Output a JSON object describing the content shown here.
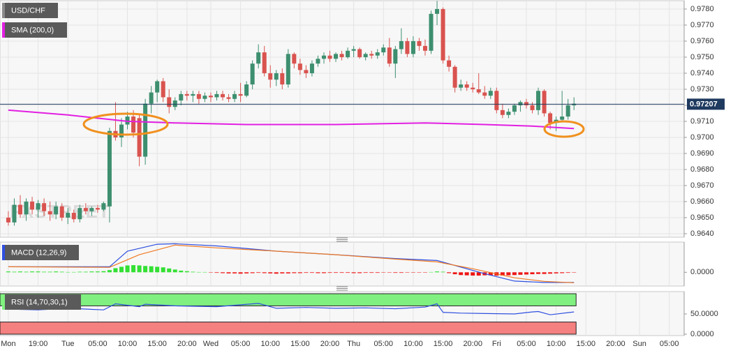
{
  "chart_data": [
    {
      "type": "candlestick",
      "name": "USD/CHF",
      "watermark": "FXSTREET",
      "up_color": "#3d8f6f",
      "down_color": "#d9534f",
      "xlim": [
        -1.4,
        113.5
      ],
      "xticks": [
        {
          "value": 0,
          "label": "Mon"
        },
        {
          "value": 5,
          "label": "19:00"
        },
        {
          "value": 10,
          "label": "Tue"
        },
        {
          "value": 15,
          "label": "05:00"
        },
        {
          "value": 20,
          "label": "10:00"
        },
        {
          "value": 25,
          "label": "15:00"
        },
        {
          "value": 30,
          "label": "20:00"
        },
        {
          "value": 34,
          "label": "Wed"
        },
        {
          "value": 39,
          "label": "05:00"
        },
        {
          "value": 44,
          "label": "10:00"
        },
        {
          "value": 49,
          "label": "15:00"
        },
        {
          "value": 54,
          "label": "20:00"
        },
        {
          "value": 58,
          "label": "Thu"
        },
        {
          "value": 63,
          "label": "05:00"
        },
        {
          "value": 68,
          "label": "10:00"
        },
        {
          "value": 73,
          "label": "15:00"
        },
        {
          "value": 78,
          "label": "20:00"
        },
        {
          "value": 82,
          "label": "Fri"
        },
        {
          "value": 87,
          "label": "05:00"
        },
        {
          "value": 92,
          "label": "10:00"
        },
        {
          "value": 97,
          "label": "15:00"
        },
        {
          "value": 102,
          "label": "20:00"
        },
        {
          "value": 106,
          "label": "Sun"
        },
        {
          "value": 111,
          "label": "05:00"
        }
      ],
      "ylim": [
        0.96378,
        0.97852
      ],
      "yticks": [
        {
          "value": 0.964,
          "label": "0.9640"
        },
        {
          "value": 0.965,
          "label": "0.9650"
        },
        {
          "value": 0.966,
          "label": "0.9660"
        },
        {
          "value": 0.967,
          "label": "0.9670"
        },
        {
          "value": 0.968,
          "label": "0.9680"
        },
        {
          "value": 0.969,
          "label": "0.9690"
        },
        {
          "value": 0.97,
          "label": "0.9700"
        },
        {
          "value": 0.971,
          "label": "0.9710"
        },
        {
          "value": 0.972,
          "label": "0.9720"
        },
        {
          "value": 0.973,
          "label": "0.9730"
        },
        {
          "value": 0.974,
          "label": "0.9740"
        },
        {
          "value": 0.975,
          "label": "0.9750"
        },
        {
          "value": 0.976,
          "label": "0.9760"
        },
        {
          "value": 0.977,
          "label": "0.9770"
        },
        {
          "value": 0.978,
          "label": "0.9780"
        }
      ],
      "grid": true,
      "last_price": 0.97207,
      "last_price_color": "#1f3a5f",
      "x": [
        0,
        1,
        2,
        3,
        4,
        5,
        6,
        7,
        8,
        9,
        10,
        11,
        12,
        13,
        14,
        15,
        16,
        17,
        18,
        19,
        20,
        21,
        22,
        23,
        24,
        25,
        26,
        27,
        28,
        29,
        30,
        31,
        32,
        33,
        34,
        35,
        36,
        37,
        38,
        39,
        40,
        41,
        42,
        43,
        44,
        45,
        46,
        47,
        48,
        49,
        50,
        51,
        52,
        53,
        54,
        55,
        56,
        57,
        58,
        59,
        60,
        61,
        62,
        63,
        64,
        65,
        66,
        67,
        68,
        69,
        70,
        71,
        72,
        73,
        74,
        75,
        76,
        77,
        78,
        79,
        80,
        81,
        82,
        83,
        84,
        85,
        86,
        87,
        88,
        89,
        90,
        91,
        92,
        93,
        94,
        95
      ],
      "candles": [
        [
          0.965,
          0.9654,
          0.9645,
          0.9647
        ],
        [
          0.9647,
          0.9662,
          0.9645,
          0.9658
        ],
        [
          0.9658,
          0.9664,
          0.965,
          0.9652
        ],
        [
          0.9652,
          0.9662,
          0.9648,
          0.966
        ],
        [
          0.966,
          0.9663,
          0.9652,
          0.9655
        ],
        [
          0.9655,
          0.9661,
          0.965,
          0.9659
        ],
        [
          0.9659,
          0.9662,
          0.9651,
          0.9654
        ],
        [
          0.9654,
          0.966,
          0.9648,
          0.9652
        ],
        [
          0.9652,
          0.966,
          0.9649,
          0.9657
        ],
        [
          0.9657,
          0.9659,
          0.9648,
          0.965
        ],
        [
          0.965,
          0.9656,
          0.9646,
          0.9653
        ],
        [
          0.9653,
          0.9655,
          0.9647,
          0.9649
        ],
        [
          0.9649,
          0.9658,
          0.9647,
          0.9656
        ],
        [
          0.9656,
          0.9659,
          0.9652,
          0.9654
        ],
        [
          0.9654,
          0.9657,
          0.9651,
          0.9656
        ],
        [
          0.9656,
          0.9658,
          0.9653,
          0.9655
        ],
        [
          0.9655,
          0.966,
          0.9654,
          0.9659
        ],
        [
          0.9657,
          0.9706,
          0.9647,
          0.9704
        ],
        [
          0.9704,
          0.9722,
          0.9698,
          0.97
        ],
        [
          0.97,
          0.9712,
          0.9694,
          0.9708
        ],
        [
          0.9708,
          0.9716,
          0.9705,
          0.9713
        ],
        [
          0.9713,
          0.9717,
          0.97,
          0.9703
        ],
        [
          0.9712,
          0.9714,
          0.9682,
          0.9688
        ],
        [
          0.9688,
          0.9724,
          0.9683,
          0.9721
        ],
        [
          0.9721,
          0.9732,
          0.9715,
          0.9728
        ],
        [
          0.9728,
          0.9736,
          0.9722,
          0.9735
        ],
        [
          0.9735,
          0.9737,
          0.9722,
          0.9725
        ],
        [
          0.9725,
          0.973,
          0.9715,
          0.9719
        ],
        [
          0.9719,
          0.9725,
          0.9717,
          0.9723
        ],
        [
          0.9723,
          0.9729,
          0.972,
          0.9727
        ],
        [
          0.9727,
          0.9729,
          0.9723,
          0.9726
        ],
        [
          0.9726,
          0.9729,
          0.9722,
          0.9727
        ],
        [
          0.9727,
          0.9729,
          0.9721,
          0.9724
        ],
        [
          0.9724,
          0.9728,
          0.9722,
          0.9726
        ],
        [
          0.9726,
          0.9728,
          0.9722,
          0.9725
        ],
        [
          0.9725,
          0.9729,
          0.9723,
          0.9727
        ],
        [
          0.9727,
          0.9729,
          0.9723,
          0.9725
        ],
        [
          0.9725,
          0.9727,
          0.9722,
          0.9724
        ],
        [
          0.9724,
          0.9729,
          0.9722,
          0.9727
        ],
        [
          0.9727,
          0.9734,
          0.9722,
          0.9726
        ],
        [
          0.9726,
          0.9735,
          0.9725,
          0.9733
        ],
        [
          0.9733,
          0.9748,
          0.973,
          0.9746
        ],
        [
          0.9746,
          0.9758,
          0.9743,
          0.9753
        ],
        [
          0.9753,
          0.9757,
          0.9738,
          0.974
        ],
        [
          0.974,
          0.9745,
          0.9731,
          0.9736
        ],
        [
          0.9736,
          0.9742,
          0.9732,
          0.974
        ],
        [
          0.974,
          0.9743,
          0.973,
          0.9733
        ],
        [
          0.9733,
          0.9755,
          0.9731,
          0.9752
        ],
        [
          0.9752,
          0.9753,
          0.9743,
          0.9746
        ],
        [
          0.9746,
          0.9749,
          0.9739,
          0.9742
        ],
        [
          0.9742,
          0.9745,
          0.9737,
          0.974
        ],
        [
          0.974,
          0.9748,
          0.9738,
          0.9746
        ],
        [
          0.9746,
          0.9751,
          0.9744,
          0.9749
        ],
        [
          0.9749,
          0.9753,
          0.9746,
          0.9751
        ],
        [
          0.9751,
          0.9754,
          0.9747,
          0.9749
        ],
        [
          0.9749,
          0.9753,
          0.9747,
          0.9752
        ],
        [
          0.9752,
          0.9754,
          0.9748,
          0.975
        ],
        [
          0.975,
          0.9756,
          0.9749,
          0.9754
        ],
        [
          0.9754,
          0.9757,
          0.975,
          0.9755
        ],
        [
          0.9755,
          0.9756,
          0.9749,
          0.975
        ],
        [
          0.975,
          0.9753,
          0.9748,
          0.9752
        ],
        [
          0.9752,
          0.9754,
          0.9749,
          0.9751
        ],
        [
          0.9751,
          0.9755,
          0.9749,
          0.9753
        ],
        [
          0.9753,
          0.9758,
          0.9751,
          0.9756
        ],
        [
          0.9756,
          0.9762,
          0.9744,
          0.9746
        ],
        [
          0.9746,
          0.9757,
          0.9737,
          0.9755
        ],
        [
          0.9755,
          0.9768,
          0.9752,
          0.976
        ],
        [
          0.976,
          0.9762,
          0.975,
          0.9752
        ],
        [
          0.9752,
          0.9763,
          0.975,
          0.976
        ],
        [
          0.976,
          0.9762,
          0.9754,
          0.9757
        ],
        [
          0.9757,
          0.9761,
          0.9751,
          0.9754
        ],
        [
          0.9754,
          0.9779,
          0.9752,
          0.9777
        ],
        [
          0.9777,
          0.9785,
          0.977,
          0.978
        ],
        [
          0.978,
          0.9781,
          0.9746,
          0.9748
        ],
        [
          0.9748,
          0.9751,
          0.9741,
          0.9744
        ],
        [
          0.9744,
          0.9745,
          0.9728,
          0.9731
        ],
        [
          0.9731,
          0.9736,
          0.9729,
          0.9733
        ],
        [
          0.9733,
          0.9735,
          0.9729,
          0.9731
        ],
        [
          0.9731,
          0.9734,
          0.9728,
          0.973
        ],
        [
          0.973,
          0.974,
          0.9727,
          0.9728
        ],
        [
          0.9728,
          0.9732,
          0.9724,
          0.9726
        ],
        [
          0.9726,
          0.9731,
          0.9724,
          0.9729
        ],
        [
          0.9729,
          0.9731,
          0.9715,
          0.9717
        ],
        [
          0.9717,
          0.9721,
          0.9712,
          0.9714
        ],
        [
          0.9714,
          0.9718,
          0.9712,
          0.9716
        ],
        [
          0.9716,
          0.9721,
          0.9714,
          0.972
        ],
        [
          0.972,
          0.9723,
          0.9716,
          0.9722
        ],
        [
          0.9722,
          0.9724,
          0.9718,
          0.972
        ],
        [
          0.972,
          0.9722,
          0.9715,
          0.9717
        ],
        [
          0.9717,
          0.9731,
          0.9714,
          0.9729
        ],
        [
          0.9729,
          0.973,
          0.9713,
          0.9715
        ],
        [
          0.9715,
          0.9716,
          0.9705,
          0.9709
        ],
        [
          0.9709,
          0.9713,
          0.9704,
          0.9711
        ],
        [
          0.9711,
          0.9729,
          0.971,
          0.9713
        ],
        [
          0.9713,
          0.9724,
          0.9711,
          0.972
        ],
        [
          0.972,
          0.9725,
          0.9717,
          0.9721
        ]
      ],
      "sma": {
        "name": "SMA (200,0)",
        "color": "#e21fe2",
        "x": [
          0,
          10,
          20,
          28,
          40,
          55,
          70,
          80,
          88,
          95
        ],
        "values": [
          0.9717,
          0.9714,
          0.971,
          0.9709,
          0.9708,
          0.9708,
          0.9709,
          0.9708,
          0.9707,
          0.97055
        ]
      }
    },
    {
      "type": "macd",
      "name": "MACD (12,26,9)",
      "ylim": [
        -0.0005,
        0.0011
      ],
      "yticks": [
        {
          "value": 0,
          "label": "0.0000"
        }
      ],
      "macd": {
        "color": "#2f4fe0",
        "x": [
          0,
          17,
          20,
          25,
          28,
          35,
          45,
          55,
          65,
          72,
          75,
          80,
          85,
          90,
          95
        ],
        "values": [
          0.0002,
          0.0002,
          0.00077,
          0.00102,
          0.00104,
          0.00096,
          0.00077,
          0.00064,
          0.0005,
          0.00043,
          0.00025,
          -5e-05,
          -0.00032,
          -0.00037,
          -0.00037
        ]
      },
      "signal": {
        "color": "#f07a22",
        "x": [
          0,
          17,
          22,
          28,
          35,
          45,
          55,
          65,
          72,
          78,
          85,
          90,
          95
        ],
        "values": [
          0.0002,
          0.00018,
          0.00064,
          0.00099,
          0.00089,
          0.00077,
          0.00064,
          0.00048,
          0.00038,
          0.00013,
          -0.0002,
          -0.00033,
          -0.00038
        ]
      },
      "histogram": {
        "up_color": "#33e033",
        "down_color": "#ee1515",
        "values": [
          3e-05,
          2e-05,
          3e-05,
          2e-05,
          3e-05,
          3e-05,
          2e-05,
          2e-05,
          3e-05,
          2e-05,
          1e-05,
          1e-05,
          2e-05,
          2e-05,
          3e-05,
          3e-05,
          4e-05,
          8e-05,
          0.00015,
          0.0002,
          0.00025,
          0.00026,
          0.00025,
          0.00023,
          0.00022,
          0.0002,
          0.00018,
          0.00014,
          0.0001,
          6e-05,
          4e-05,
          2e-05,
          1e-05,
          1e-05,
          -1e-05,
          -2e-05,
          -3e-05,
          -4e-05,
          -4e-05,
          -5e-05,
          -4e-05,
          -3e-05,
          -2e-05,
          -3e-05,
          -4e-05,
          -5e-05,
          -4e-05,
          -4e-05,
          -3e-05,
          -3e-05,
          -2e-05,
          -2e-05,
          -3e-05,
          -3e-05,
          -2e-05,
          -2e-05,
          -2e-05,
          -2e-05,
          -3e-05,
          -3e-05,
          -2e-05,
          -2e-05,
          -2e-05,
          -1e-05,
          -1e-05,
          -2e-05,
          -2e-05,
          -1e-05,
          -1e-05,
          -1e-05,
          -1e-05,
          1e-05,
          3e-05,
          2e-05,
          -3e-05,
          -7e-05,
          -0.0001,
          -0.00011,
          -0.00012,
          -0.00012,
          -0.00011,
          -0.00011,
          -0.00012,
          -0.00012,
          -0.00011,
          -0.0001,
          -9e-05,
          -8e-05,
          -7e-05,
          -6e-05,
          -6e-05,
          -5e-05,
          -4e-05,
          -3e-05,
          -2e-05,
          -1e-05
        ]
      }
    },
    {
      "type": "rsi",
      "name": "RSI (14,70,30,1)",
      "ylim": [
        -3.45,
        105.2
      ],
      "yticks": [
        {
          "value": 0,
          "label": "0.0000"
        },
        {
          "value": 50,
          "label": "50.0000"
        }
      ],
      "bands": [
        {
          "range": [
            70,
            100
          ],
          "color": "#80f080"
        },
        {
          "range": [
            0,
            30
          ],
          "color": "#f48080"
        }
      ],
      "rsi": {
        "color": "#2f4fe0",
        "x": [
          0,
          5,
          10,
          16,
          18,
          22,
          23,
          28,
          35,
          42,
          45,
          50,
          55,
          60,
          65,
          70,
          72,
          73,
          76,
          80,
          85,
          88,
          89,
          91,
          95
        ],
        "values": [
          62,
          60,
          64,
          60,
          75,
          68,
          74,
          70,
          68,
          76,
          64,
          66,
          64,
          65,
          63,
          67,
          75,
          54,
          52,
          51,
          50,
          55,
          56,
          48,
          55
        ]
      }
    }
  ]
}
